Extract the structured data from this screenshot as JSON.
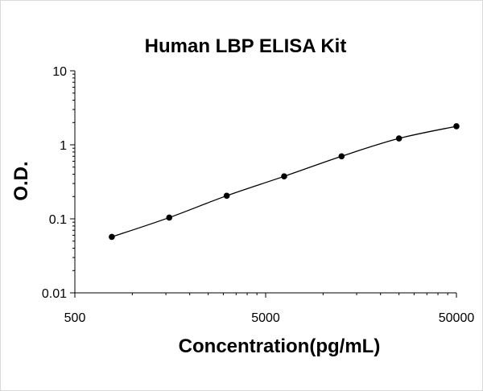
{
  "chart_data": {
    "type": "scatter",
    "title": "Human LBP ELISA Kit",
    "xlabel": "Concentration(pg/mL)",
    "ylabel": "O.D.",
    "x_scale": "log",
    "y_scale": "log",
    "xlim": [
      500,
      50000
    ],
    "ylim": [
      0.01,
      10
    ],
    "x_ticks": [
      500,
      5000,
      50000
    ],
    "x_tick_labels": [
      "500",
      "5000",
      "50000"
    ],
    "y_ticks": [
      0.01,
      0.1,
      1,
      10
    ],
    "y_tick_labels": [
      "0.01",
      "0.1",
      "1",
      "10"
    ],
    "grid": false,
    "legend": "none",
    "trendline": true,
    "colors": {
      "marker": "#000000",
      "line": "#000000",
      "axis": "#000000"
    },
    "series": [
      {
        "x": [
          781,
          1562,
          3125,
          6250,
          12500,
          25000,
          50000
        ],
        "y": [
          0.057,
          0.104,
          0.205,
          0.375,
          0.7,
          1.22,
          1.78
        ]
      }
    ]
  }
}
